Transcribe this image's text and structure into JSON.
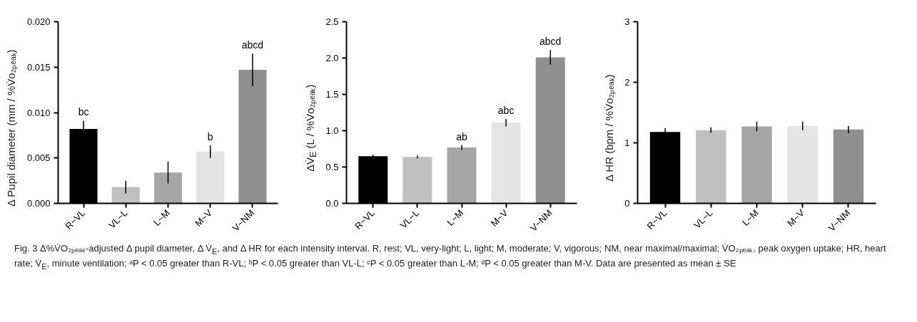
{
  "chart_data": [
    {
      "type": "bar",
      "ylabel": "Δ Pupil diameter (mm / %V̇o₂ₚₑₐₖ)",
      "categories": [
        "R~VL",
        "VL~L",
        "L~M",
        "M~V",
        "V~NM"
      ],
      "values": [
        0.0082,
        0.0018,
        0.0034,
        0.0057,
        0.0147
      ],
      "errors": [
        0.0009,
        0.0007,
        0.0012,
        0.0007,
        0.0018
      ],
      "colors": [
        "#000000",
        "#c0c0c0",
        "#a6a6a6",
        "#e4e4e4",
        "#8f8f8f"
      ],
      "ylim": [
        0,
        0.02
      ],
      "yticks": [
        {
          "value": 0,
          "label": "0.000"
        },
        {
          "value": 0.005,
          "label": "0.005"
        },
        {
          "value": 0.01,
          "label": "0.010"
        },
        {
          "value": 0.015,
          "label": "0.015"
        },
        {
          "value": 0.02,
          "label": "0.020"
        }
      ],
      "grid": false,
      "legend": false,
      "annotations": [
        {
          "text": "bc",
          "x": "R~VL",
          "y": 0.0091
        },
        {
          "text": "b",
          "x": "M~V",
          "y": 0.0064
        },
        {
          "text": "abcd",
          "x": "V~NM",
          "y": 0.0165
        },
        "Fig. 3  Δ%V̇O₂ₚₑₐₖ-adjusted Δ pupil diameter, Δ V̇$_{E}$, and Δ HR for each intensity interval. R, rest; VL, very-light; L, light; M, moderate; V, vigorous; NM, near maximal/maximal; V̇O₂ₚₑₐₖ, peak oxygen uptake; HR, heart rate; V̇$_{E}$, minute ventilation; ᵃP < 0.05 greater than R-VL; ᵇP < 0.05 greater than VL-L; ᶜP < 0.05 greater than L-M; ᵈP < 0.05 greater than M-V.  Data are presented as mean ± SE"
      ]
    },
    {
      "type": "bar",
      "ylabel": "ΔV̇$_{E}$ (L / %V̇o₂ₚₑₐₖ)",
      "categories": [
        "R~VL",
        "VL~L",
        "L~M",
        "M~V",
        "V~NM"
      ],
      "values": [
        0.65,
        0.64,
        0.77,
        1.11,
        2.01
      ],
      "errors": [
        0.02,
        0.02,
        0.035,
        0.05,
        0.1
      ],
      "colors": [
        "#000000",
        "#c0c0c0",
        "#a6a6a6",
        "#e4e4e4",
        "#8f8f8f"
      ],
      "ylim": [
        0,
        2.5
      ],
      "yticks": [
        {
          "value": 0,
          "label": "0.0"
        },
        0.5,
        {
          "value": 1,
          "label": "1.0"
        },
        1.5,
        {
          "value": 2,
          "label": "2.0"
        },
        2.5
      ],
      "grid": false,
      "legend": false,
      "annotations": [
        {
          "text": "ab",
          "x": "L~M",
          "y": 0.8
        },
        {
          "text": "abc",
          "x": "M~V",
          "y": 1.16
        },
        {
          "text": "abcd",
          "x": "V~NM",
          "y": 2.11
        }
      ]
    },
    {
      "type": "bar",
      "ylabel": "Δ HR (bpm / %V̇o₂ₚₑₐₖ)",
      "categories": [
        "R~VL",
        "VL~L",
        "L~M",
        "M~V",
        "V~NM"
      ],
      "values": [
        1.18,
        1.21,
        1.27,
        1.28,
        1.22
      ],
      "errors": [
        0.06,
        0.045,
        0.08,
        0.07,
        0.06
      ],
      "colors": [
        "#000000",
        "#c0c0c0",
        "#a6a6a6",
        "#e4e4e4",
        "#8f8f8f"
      ],
      "ylim": [
        0,
        3
      ],
      "yticks": [
        0,
        1,
        2,
        3
      ],
      "grid": false,
      "legend": false
    }
  ]
}
